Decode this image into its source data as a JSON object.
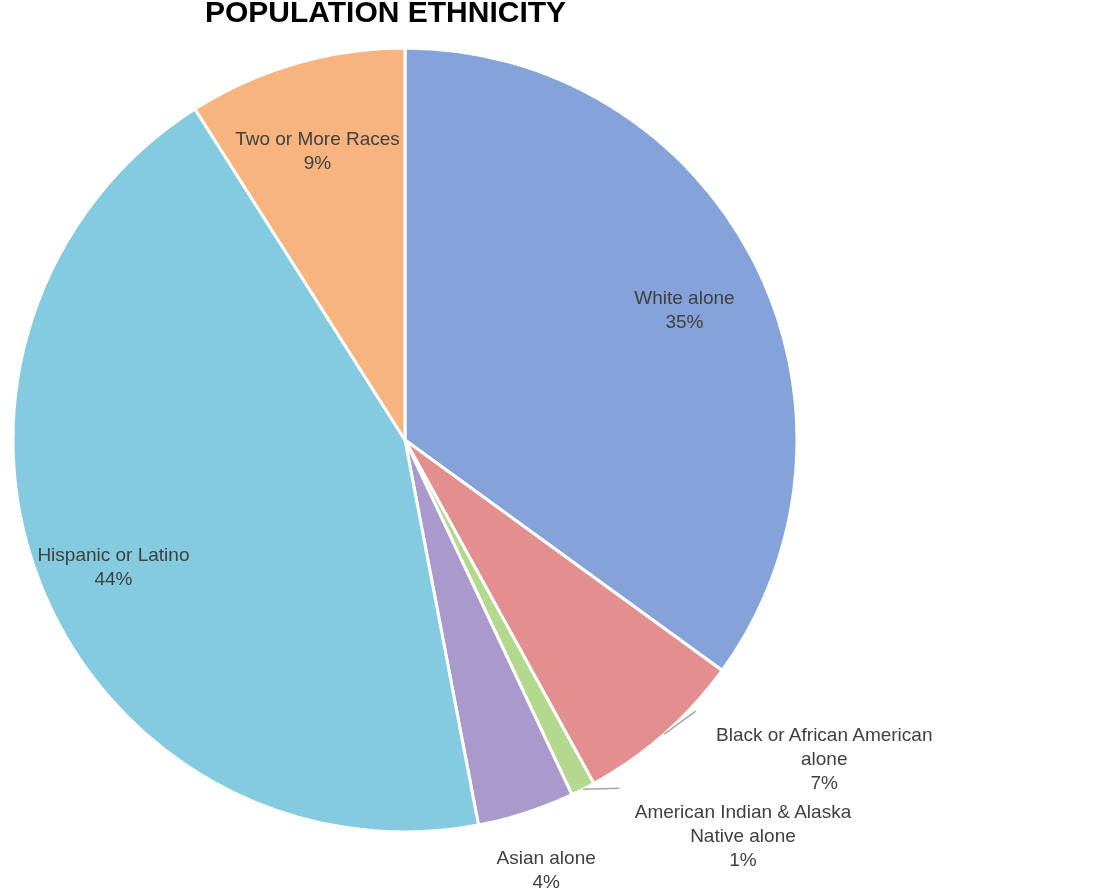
{
  "chart_data": {
    "type": "pie",
    "title": "POPULATION ETHNICITY",
    "categories": [
      "White alone",
      "Black or African American alone",
      "American Indian & Alaska Native alone",
      "Asian alone",
      "Hispanic or Latino",
      "Two or More Races"
    ],
    "values": [
      35,
      7,
      1,
      4,
      44,
      9
    ],
    "value_labels": [
      "35%",
      "7%",
      "1%",
      "4%",
      "44%",
      "9%"
    ],
    "colors": [
      "#86a3d9",
      "#e48f8f",
      "#b3d98e",
      "#a99acb",
      "#84cbe0",
      "#f8b47e"
    ]
  }
}
